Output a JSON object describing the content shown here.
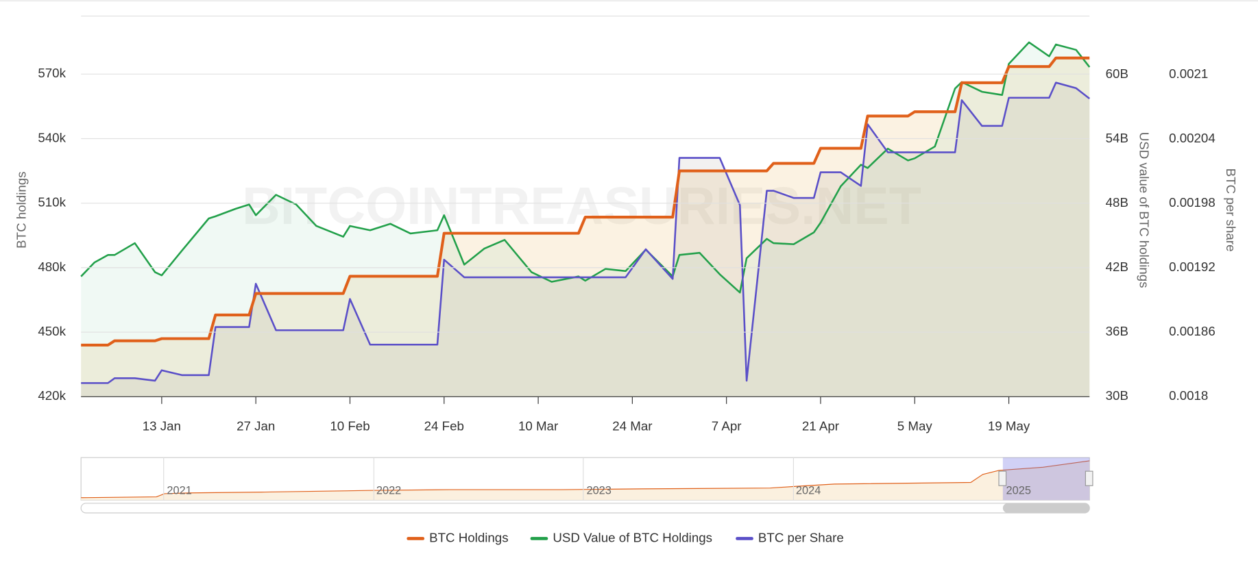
{
  "chart_data": {
    "type": "line",
    "watermark": "BITCOINTREASURIES.NET",
    "ylabel": "BTC holdings",
    "y2label": "USD value of BTC holdings",
    "y3label": "BTC per share",
    "x": [
      "1 Jan",
      "3 Jan",
      "5 Jan",
      "6 Jan",
      "9 Jan",
      "12 Jan",
      "13 Jan",
      "16 Jan",
      "20 Jan",
      "21 Jan",
      "24 Jan",
      "26 Jan",
      "27 Jan",
      "30 Jan",
      "2 Feb",
      "5 Feb",
      "9 Feb",
      "10 Feb",
      "13 Feb",
      "16 Feb",
      "19 Feb",
      "23 Feb",
      "24 Feb",
      "27 Feb",
      "2 Mar",
      "5 Mar",
      "9 Mar",
      "12 Mar",
      "16 Mar",
      "17 Mar",
      "20 Mar",
      "23 Mar",
      "26 Mar",
      "30 Mar",
      "31 Mar",
      "3 Apr",
      "6 Apr",
      "9 Apr",
      "10 Apr",
      "13 Apr",
      "14 Apr",
      "17 Apr",
      "20 Apr",
      "21 Apr",
      "24 Apr",
      "27 Apr",
      "28 Apr",
      "1 May",
      "4 May",
      "5 May",
      "8 May",
      "11 May",
      "12 May",
      "15 May",
      "18 May",
      "19 May",
      "22 May",
      "25 May",
      "26 May",
      "29 May",
      "31 May"
    ],
    "xlim": [
      "1 Jan",
      "31 May"
    ],
    "xticks": [
      "13 Jan",
      "27 Jan",
      "10 Feb",
      "24 Feb",
      "10 Mar",
      "24 Mar",
      "7 Apr",
      "21 Apr",
      "5 May",
      "19 May"
    ],
    "ylim": [
      420000,
      597000
    ],
    "yticks": [
      {
        "value": 420000,
        "label": "420k"
      },
      {
        "value": 450000,
        "label": "450k"
      },
      {
        "value": 480000,
        "label": "480k"
      },
      {
        "value": 510000,
        "label": "510k"
      },
      {
        "value": 540000,
        "label": "540k"
      },
      {
        "value": 570000,
        "label": "570k"
      }
    ],
    "y2lim": [
      30000000000,
      65450000000
    ],
    "y2ticks": [
      {
        "value": 30000000000,
        "label": "30B"
      },
      {
        "value": 36000000000,
        "label": "36B"
      },
      {
        "value": 42000000000,
        "label": "42B"
      },
      {
        "value": 48000000000,
        "label": "48B"
      },
      {
        "value": 54000000000,
        "label": "54B"
      },
      {
        "value": 60000000000,
        "label": "60B"
      }
    ],
    "y3lim": [
      0.0018,
      0.0021545
    ],
    "y3ticks": [
      0.0018,
      0.00186,
      0.00192,
      0.00198,
      0.00204,
      0.0021
    ],
    "grid": true,
    "series": [
      {
        "name": "BTC Holdings",
        "color": "#e0601a",
        "axis": "y",
        "fill": "rgba(235,190,110,0.2)",
        "values": [
          444000,
          444000,
          444000,
          446000,
          446000,
          446000,
          447000,
          447000,
          447000,
          458000,
          458000,
          458000,
          468000,
          468000,
          468000,
          468000,
          468000,
          476000,
          476000,
          476000,
          476000,
          476000,
          496000,
          496000,
          496000,
          496000,
          496000,
          496000,
          496000,
          503500,
          503500,
          503500,
          503500,
          503500,
          525000,
          525000,
          525000,
          525000,
          525000,
          525000,
          528500,
          528500,
          528500,
          535500,
          535500,
          535500,
          550500,
          550500,
          550500,
          552500,
          552500,
          552500,
          566000,
          566000,
          566000,
          573500,
          573500,
          573500,
          577500,
          577500,
          577500
        ]
      },
      {
        "name": "USD Value of BTC Holdings",
        "color": "#22a04a",
        "axis": "y2",
        "fill": "rgba(150,215,175,0.14)",
        "values": [
          41200000000,
          42500000000,
          43200000000,
          43200000000,
          44300000000,
          41600000000,
          41300000000,
          43600000000,
          46600000000,
          46800000000,
          47500000000,
          47900000000,
          46900000000,
          48800000000,
          47900000000,
          45900000000,
          44900000000,
          45900000000,
          45500000000,
          46100000000,
          45200000000,
          45500000000,
          46900000000,
          42300000000,
          43800000000,
          44600000000,
          41600000000,
          40700000000,
          41200000000,
          40800000000,
          41900000000,
          41700000000,
          43700000000,
          41200000000,
          43200000000,
          43400000000,
          41400000000,
          39700000000,
          42900000000,
          44700000000,
          44300000000,
          44200000000,
          45300000000,
          46200000000,
          49600000000,
          51600000000,
          51300000000,
          53100000000,
          52000000000,
          52200000000,
          53300000000,
          58700000000,
          59300000000,
          58400000000,
          58100000000,
          61000000000,
          63000000000,
          61700000000,
          62800000000,
          62300000000,
          60700000000
        ]
      },
      {
        "name": "BTC per Share",
        "color": "#5a4fc8",
        "axis": "y3",
        "fill": "rgba(160,155,150,0.14)",
        "values": [
          0.0018127,
          0.0018127,
          0.0018127,
          0.0018172,
          0.0018172,
          0.0018149,
          0.0018246,
          0.0018201,
          0.0018201,
          0.0018649,
          0.0018649,
          0.0018649,
          0.0019052,
          0.0018619,
          0.0018619,
          0.0018619,
          0.0018619,
          0.001891,
          0.0018485,
          0.0018485,
          0.0018485,
          0.0018485,
          0.0019276,
          0.0019112,
          0.0019112,
          0.0019112,
          0.0019112,
          0.0019112,
          0.0019112,
          0.0019112,
          0.0019112,
          0.0019112,
          0.0019373,
          0.0019097,
          0.0020224,
          0.0020224,
          0.0020224,
          0.0019784,
          0.0018149,
          0.0019918,
          0.0019918,
          0.0019851,
          0.0019851,
          0.002009,
          0.002009,
          0.0019963,
          0.0020537,
          0.0020276,
          0.0020276,
          0.0020276,
          0.0020276,
          0.0020276,
          0.0020761,
          0.0020522,
          0.0020522,
          0.0020784,
          0.0020784,
          0.0020784,
          0.0020925,
          0.0020873,
          0.0020776
        ]
      }
    ],
    "navigator": {
      "labels": [
        "2021",
        "2022",
        "2023",
        "2024",
        "2025"
      ]
    }
  }
}
